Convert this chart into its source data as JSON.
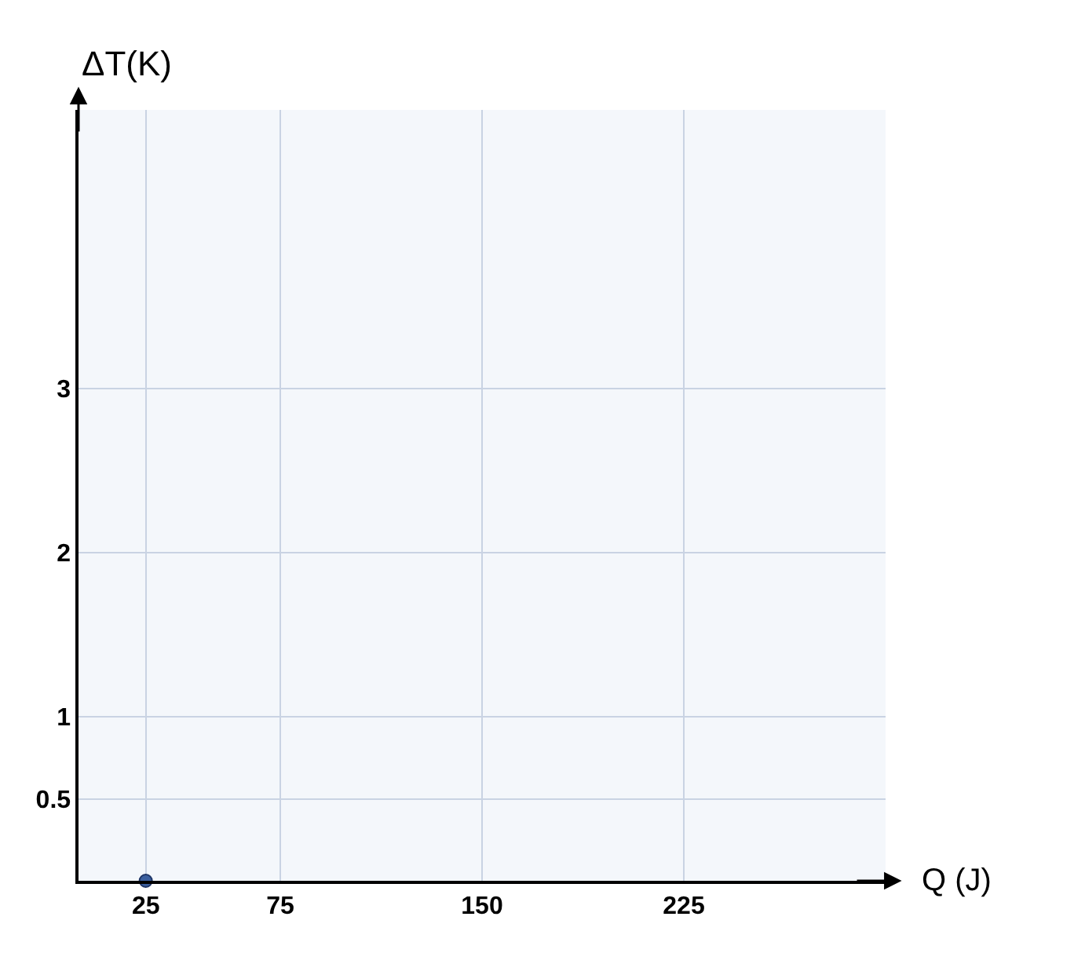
{
  "chart_data": {
    "type": "scatter",
    "xlabel": "Q (J)",
    "ylabel": "ΔT(K)",
    "x": [
      25
    ],
    "series": [
      {
        "color": "#3b5f9e",
        "values": [
          0
        ]
      }
    ],
    "xlim": [
      0,
      300
    ],
    "xticks": [
      25,
      75,
      150,
      225
    ],
    "ylim": [
      0,
      4.7
    ],
    "yticks": [
      0.5,
      1,
      2,
      3
    ],
    "grid": true,
    "marker": "circle"
  }
}
